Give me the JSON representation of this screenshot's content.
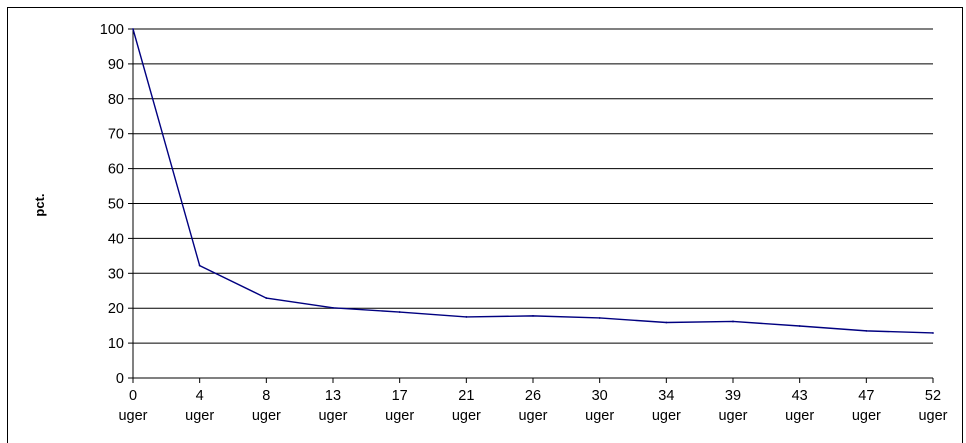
{
  "chart_data": {
    "type": "line",
    "title": "",
    "xlabel": "",
    "ylabel": "pct.",
    "ylim": [
      0,
      100
    ],
    "yticks": [
      0,
      10,
      20,
      30,
      40,
      50,
      60,
      70,
      80,
      90,
      100
    ],
    "grid": true,
    "legend": "none",
    "line_color": "#000080",
    "categories": [
      "0 uger",
      "4 uger",
      "8 uger",
      "13 uger",
      "17 uger",
      "21 uger",
      "26 uger",
      "30 uger",
      "34 uger",
      "39 uger",
      "43 uger",
      "47 uger",
      "52 uger"
    ],
    "category_lines": [
      [
        "0",
        "uger"
      ],
      [
        "4",
        "uger"
      ],
      [
        "8",
        "uger"
      ],
      [
        "13",
        "uger"
      ],
      [
        "17",
        "uger"
      ],
      [
        "21",
        "uger"
      ],
      [
        "26",
        "uger"
      ],
      [
        "30",
        "uger"
      ],
      [
        "34",
        "uger"
      ],
      [
        "39",
        "uger"
      ],
      [
        "43",
        "uger"
      ],
      [
        "47",
        "uger"
      ],
      [
        "52",
        "uger"
      ]
    ],
    "series": [
      {
        "values": [
          100,
          32.2,
          22.9,
          20.1,
          18.9,
          17.5,
          17.8,
          17.2,
          15.9,
          16.2,
          14.9,
          13.5,
          12.9
        ]
      }
    ]
  }
}
